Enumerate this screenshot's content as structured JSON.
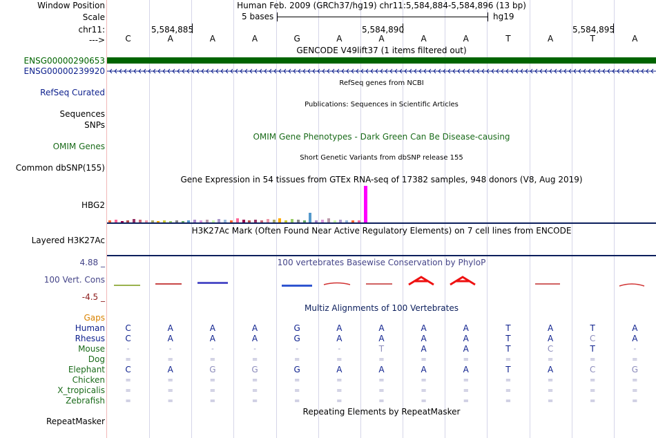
{
  "header": {
    "window_position_label": "Window Position",
    "window_position_value": "Human Feb. 2009 (GRCh37/hg19)   chr11:5,584,884-5,584,896 (13 bp)",
    "scale_label": "Scale",
    "scale_left": "5 bases",
    "scale_right": "hg19",
    "chrom_label": "chr11:",
    "arrow_label": "--->",
    "ruler_ticks": [
      "5,584,885",
      "5,584,890",
      "5,584,895"
    ]
  },
  "dna_bases": [
    "C",
    "A",
    "A",
    "A",
    "G",
    "A",
    "A",
    "A",
    "A",
    "T",
    "A",
    "T",
    "A"
  ],
  "tracks": {
    "gencode_title": "GENCODE V49lift37 (1 items filtered out)",
    "gene1": "ENSG00000290653",
    "gene2": "ENSG00000239920",
    "refseq_label": "RefSeq Curated",
    "refseq_title": "RefSeq genes from NCBI",
    "sequences_label": "Sequences",
    "publications_title": "Publications: Sequences in Scientific Articles",
    "snps_label": "SNPs",
    "omim_label": "OMIM Genes",
    "omim_title": "OMIM Gene Phenotypes - Dark Green Can Be Disease-causing",
    "dbsnp_label": "Common dbSNP(155)",
    "dbsnp_title": "Short Genetic Variants from dbSNP release 155",
    "gtex_title": "Gene Expression in 54 tissues from GTEx RNA-seq of 17382 samples, 948 donors (V8, Aug 2019)",
    "hbg2_label": "HBG2",
    "h3k27_title": "H3K27Ac Mark (Often Found Near Active Regulatory Elements) on 7 cell lines from ENCODE",
    "h3k27_label": "Layered H3K27Ac",
    "cons_top": "4.88 _",
    "cons_title": "100 vertebrates Basewise Conservation by PhyloP",
    "cons_label": "100 Vert. Cons",
    "cons_bottom": "-4.5 _",
    "multiz_title": "Multiz Alignments of 100 Vertebrates",
    "gaps_label": "Gaps",
    "repeat_title": "Repeating Elements by RepeatMasker",
    "repeat_label": "RepeatMasker"
  },
  "alignment": [
    {
      "species": "Human",
      "color": "#0b1e8c",
      "bases": [
        "C",
        "A",
        "A",
        "A",
        "G",
        "A",
        "A",
        "A",
        "A",
        "T",
        "A",
        "T",
        "A"
      ]
    },
    {
      "species": "Rhesus",
      "color": "#0b1e8c",
      "bases": [
        "C",
        "A",
        "A",
        "A",
        "G",
        "A",
        "A",
        "A",
        "A",
        "T",
        "A",
        "C",
        "A"
      ]
    },
    {
      "species": "Mouse",
      "color": "#1a6b1a",
      "bases": [
        "-",
        "-",
        "-",
        "-",
        "-",
        "-",
        "T",
        "A",
        "A",
        "T",
        "C",
        "T",
        "-"
      ]
    },
    {
      "species": "Dog",
      "color": "#1a6b1a",
      "bases": [
        "=",
        "=",
        "=",
        "=",
        "=",
        "=",
        "=",
        "=",
        "=",
        "=",
        "=",
        "=",
        "="
      ]
    },
    {
      "species": "Elephant",
      "color": "#1a6b1a",
      "bases": [
        "C",
        "A",
        "G",
        "G",
        "G",
        "A",
        "A",
        "A",
        "A",
        "T",
        "A",
        "C",
        "G"
      ]
    },
    {
      "species": "Chicken",
      "color": "#1a6b1a",
      "bases": [
        "=",
        "=",
        "=",
        "=",
        "=",
        "=",
        "=",
        "=",
        "=",
        "=",
        "=",
        "=",
        "="
      ]
    },
    {
      "species": "X_tropicalis",
      "color": "#1a6b1a",
      "bases": [
        "=",
        "=",
        "=",
        "=",
        "=",
        "=",
        "=",
        "=",
        "=",
        "=",
        "=",
        "=",
        "="
      ]
    },
    {
      "species": "Zebrafish",
      "color": "#1a6b1a",
      "bases": [
        "=",
        "=",
        "=",
        "=",
        "=",
        "=",
        "=",
        "=",
        "=",
        "=",
        "=",
        "=",
        "="
      ]
    }
  ],
  "colors": {
    "gene_green": "#006400",
    "gene_blue": "#0b1e8c",
    "omim_green": "#1a6b1a",
    "gaps_orange": "#d98200",
    "cons_blue": "#444488",
    "cons_red": "#8b1a1a",
    "hbg2_peak": "#ff00ff"
  }
}
